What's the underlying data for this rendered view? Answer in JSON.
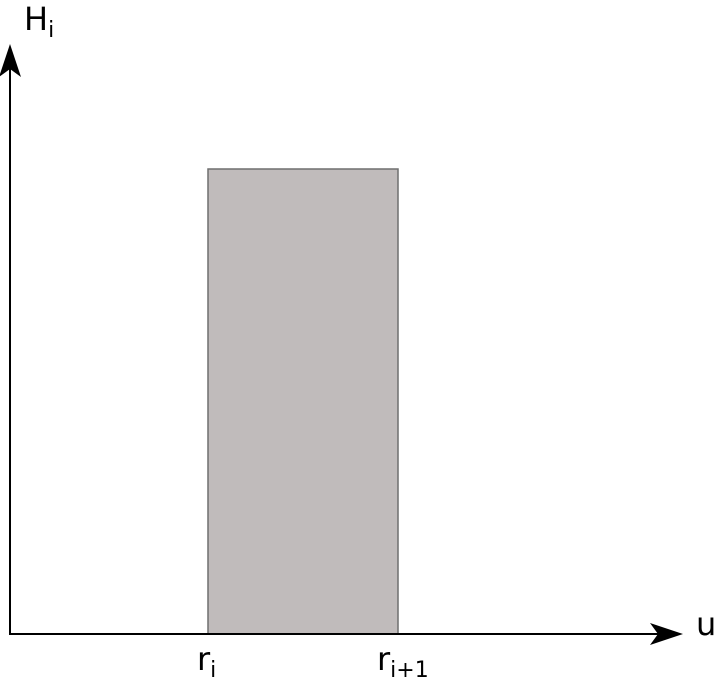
{
  "colors": {
    "background": "#ffffff",
    "axis": "#000000",
    "bar_fill": "#c0bbbb",
    "bar_stroke": "#6f6f6f"
  },
  "y_axis": {
    "label_main": "H",
    "label_sub": "i"
  },
  "x_axis": {
    "label": "u"
  },
  "ticks": [
    {
      "main": "r",
      "sub": "i"
    },
    {
      "main": "r",
      "sub": "i+1"
    }
  ]
}
